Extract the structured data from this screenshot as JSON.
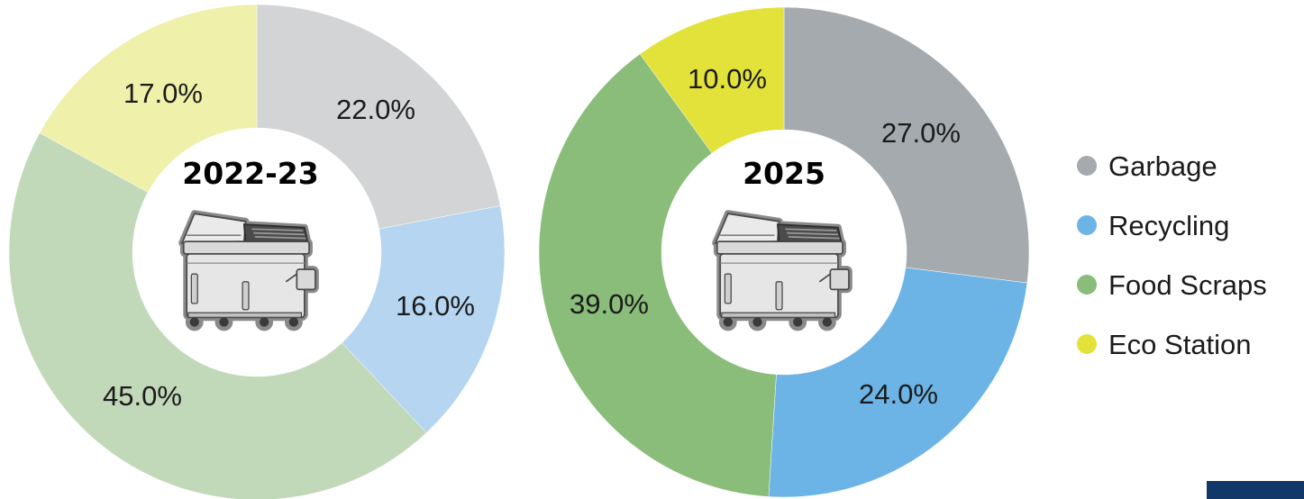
{
  "chart_data": [
    {
      "type": "pie",
      "title": "2022-23",
      "categories": [
        "Garbage",
        "Recycling",
        "Food Scraps",
        "Eco Station"
      ],
      "values": [
        22.0,
        16.0,
        45.0,
        17.0
      ],
      "labels": [
        "22.0%",
        "16.0%",
        "45.0%",
        "17.0%"
      ],
      "colors": [
        "#d2d4d5",
        "#b5d5f0",
        "#c1d9b8",
        "#eff0a9"
      ]
    },
    {
      "type": "pie",
      "title": "2025",
      "categories": [
        "Garbage",
        "Recycling",
        "Food Scraps",
        "Eco Station"
      ],
      "values": [
        27.0,
        24.0,
        39.0,
        10.0
      ],
      "labels": [
        "27.0%",
        "24.0%",
        "39.0%",
        "10.0%"
      ],
      "colors": [
        "#a4aaad",
        "#6cb4e6",
        "#89bd79",
        "#e2e23b"
      ]
    }
  ],
  "legend": {
    "position": "right",
    "items": [
      {
        "label": "Garbage",
        "color": "#a4aaad"
      },
      {
        "label": "Recycling",
        "color": "#6cb4e6"
      },
      {
        "label": "Food Scraps",
        "color": "#89bd79"
      },
      {
        "label": "Eco Station",
        "color": "#e2e23b"
      }
    ]
  },
  "center_icon": "dumpster-icon",
  "corner_accent_color": "#12386a"
}
